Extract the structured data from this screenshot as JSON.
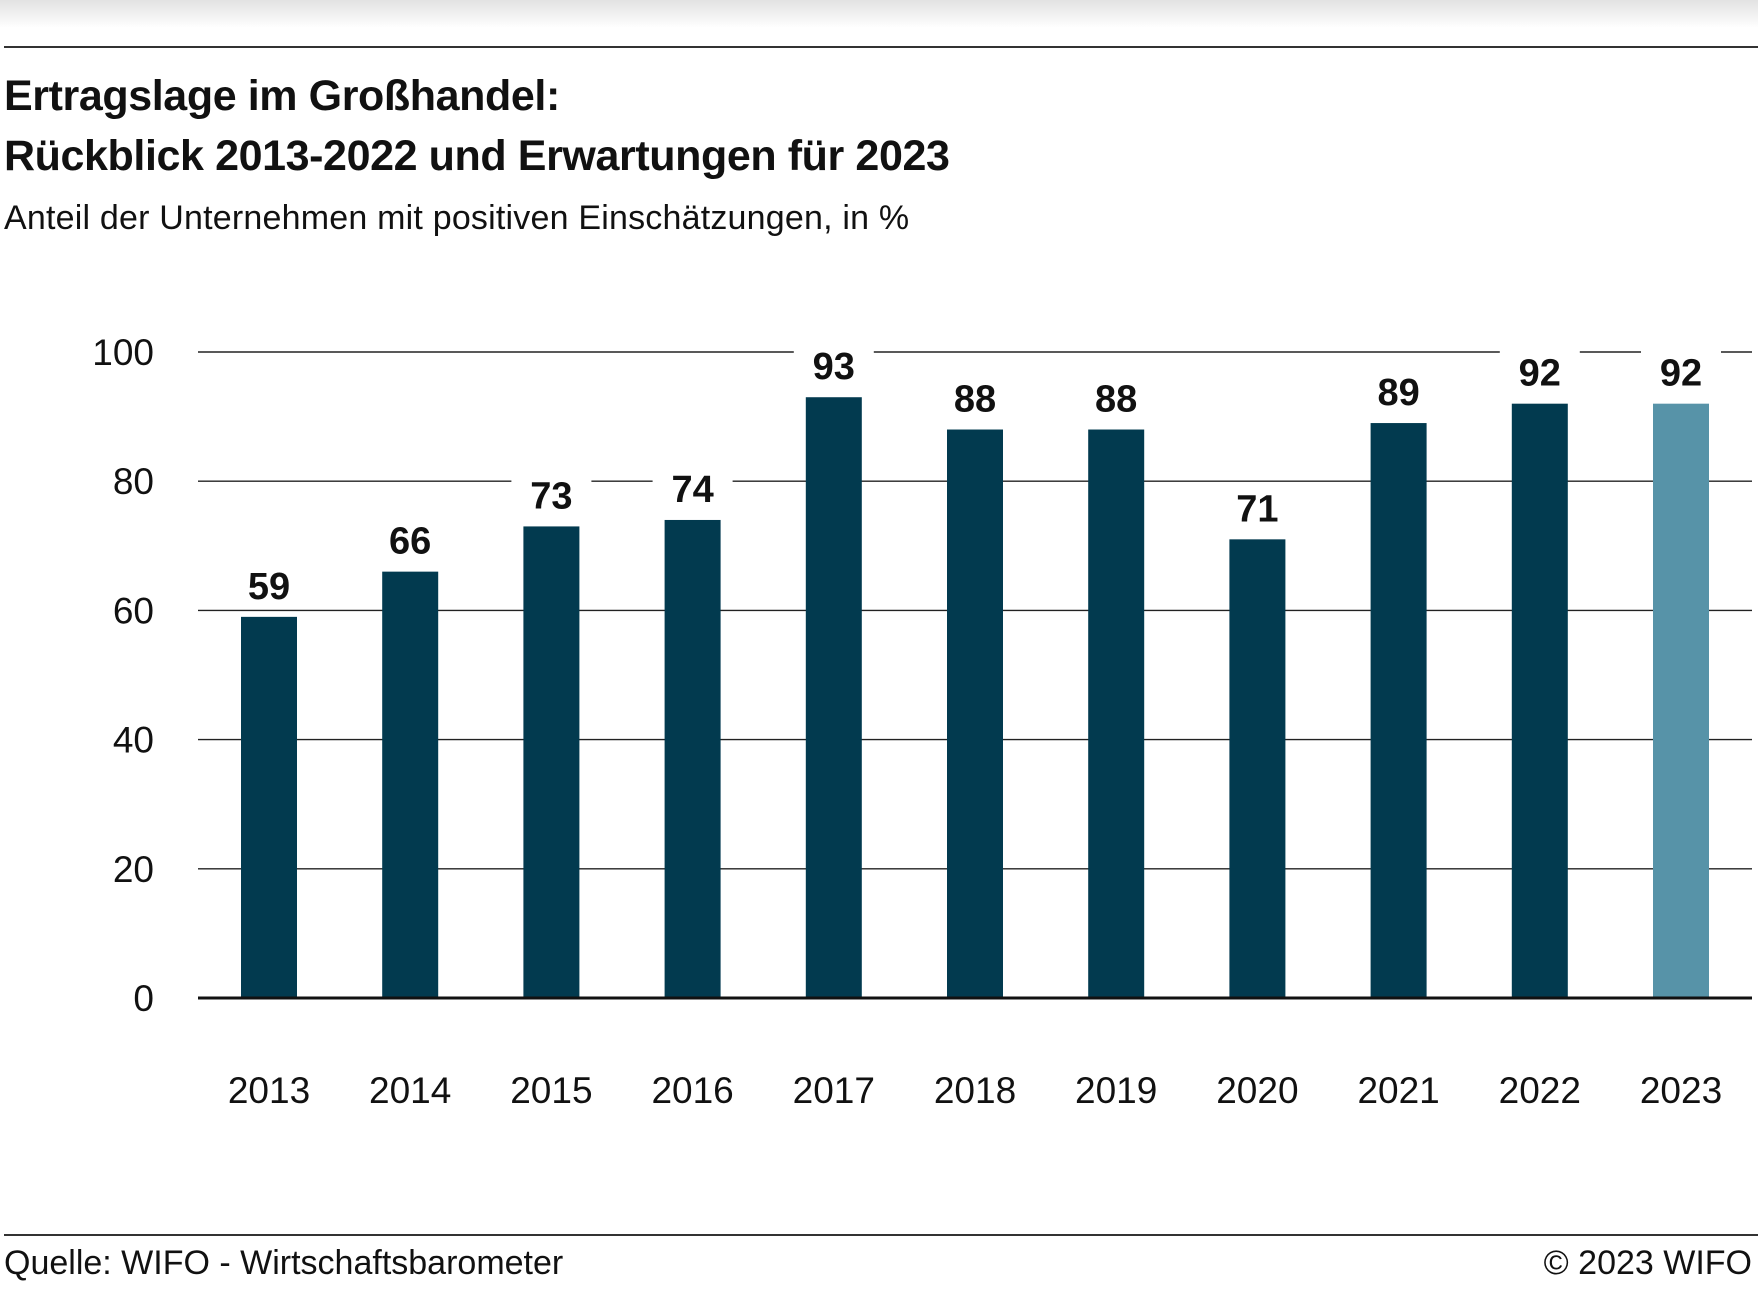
{
  "header": {
    "title_line1": "Ertragslage im Großhandel:",
    "title_line2": "Rückblick 2013-2022 und Erwartungen für 2023",
    "subtitle": "Anteil der Unternehmen mit positiven Einschätzungen, in %"
  },
  "footer": {
    "source": "Quelle: WIFO - Wirtschaftsbarometer",
    "copyright": "© 2023 WIFO"
  },
  "chart_data": {
    "type": "bar",
    "categories": [
      "2013",
      "2014",
      "2015",
      "2016",
      "2017",
      "2018",
      "2019",
      "2020",
      "2021",
      "2022",
      "2023"
    ],
    "values": [
      59,
      66,
      73,
      74,
      93,
      88,
      88,
      71,
      89,
      92,
      92
    ],
    "data_labels": [
      "59",
      "66",
      "73",
      "74",
      "93",
      "88",
      "88",
      "71",
      "89",
      "92",
      "92"
    ],
    "ylim": [
      0,
      100
    ],
    "yticks": [
      0,
      20,
      40,
      60,
      80,
      100
    ],
    "ytick_labels": [
      "0",
      "20",
      "40",
      "60",
      "80",
      "100"
    ],
    "grid": true,
    "legend": "none",
    "colors": {
      "actual": "#023a4f",
      "expectation": "#5793a8",
      "gridline": "#222222",
      "axis": "#111111",
      "text": "#111111"
    },
    "highlighted_category": "2023"
  }
}
